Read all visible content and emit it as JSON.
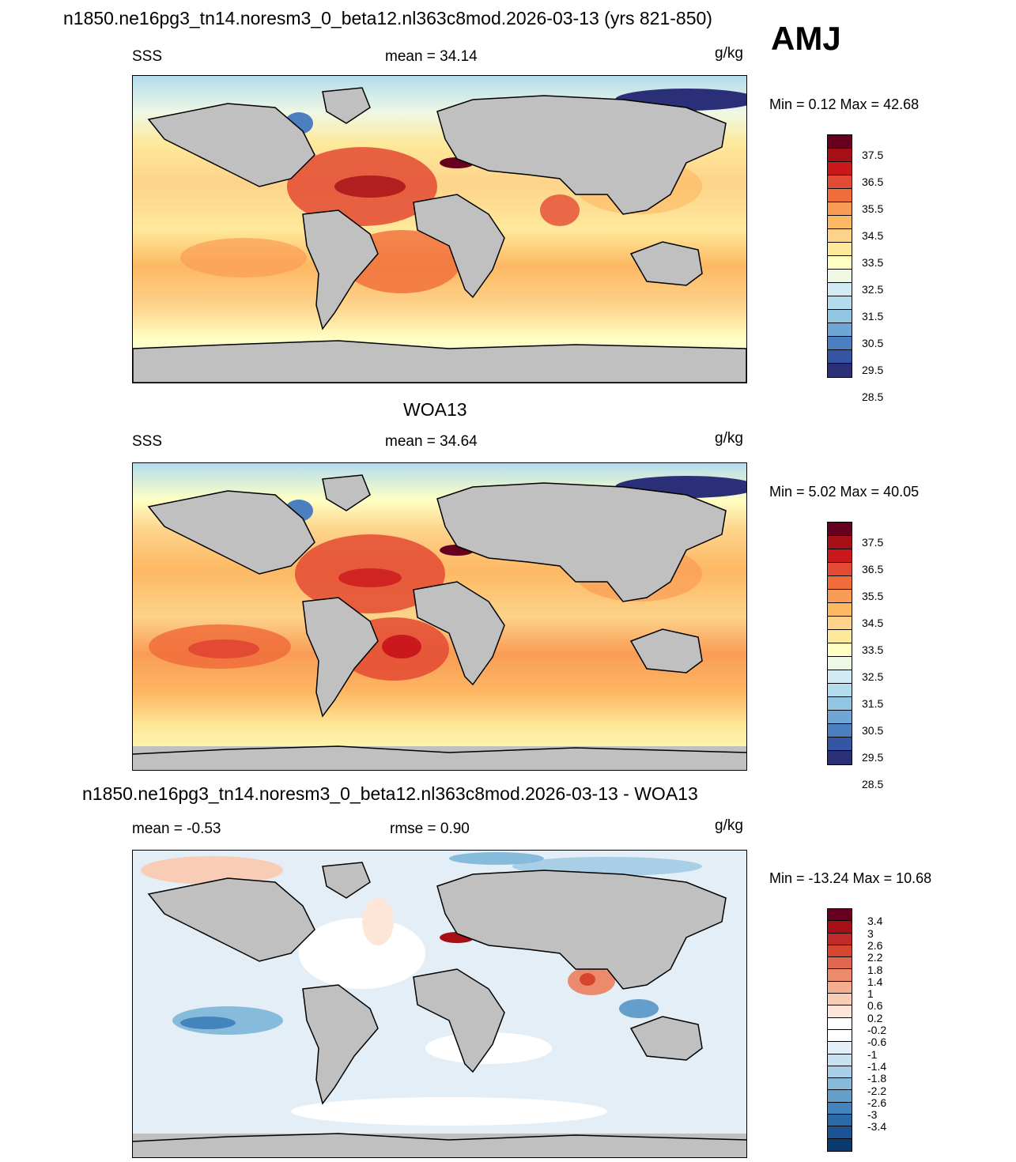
{
  "header": {
    "title": "n1850.ne16pg3_tn14.noresm3_0_beta12.nl363c8mod.2026-03-13 (yrs 821-850)",
    "season": "AMJ"
  },
  "panels": [
    {
      "id": "model",
      "title": "",
      "left_label": "SSS",
      "center_label": "mean =  34.14",
      "units": "g/kg",
      "minmax": "Min =   0.12 Max =  42.68",
      "colorbar": {
        "colors": [
          "#67001f",
          "#a50f15",
          "#cb181d",
          "#e34a33",
          "#f06d3b",
          "#f99c56",
          "#fdb863",
          "#fdd38a",
          "#fee99b",
          "#ffffc4",
          "#eef8e5",
          "#d1eaf4",
          "#b3dced",
          "#92c5e2",
          "#6fa6d5",
          "#4b7fc0",
          "#3456a4",
          "#2a2f78"
        ],
        "labels": [
          "37.5",
          "36.5",
          "35.5",
          "34.5",
          "33.5",
          "32.5",
          "31.5",
          "30.5",
          "29.5",
          "28.5"
        ]
      }
    },
    {
      "id": "obs",
      "title": "WOA13",
      "left_label": "SSS",
      "center_label": "mean =  34.64",
      "units": "g/kg",
      "minmax": "Min =   5.02 Max =  40.05",
      "colorbar": {
        "colors": [
          "#67001f",
          "#a50f15",
          "#cb181d",
          "#e34a33",
          "#f06d3b",
          "#f99c56",
          "#fdb863",
          "#fdd38a",
          "#fee99b",
          "#ffffc4",
          "#eef8e5",
          "#d1eaf4",
          "#b3dced",
          "#92c5e2",
          "#6fa6d5",
          "#4b7fc0",
          "#3456a4",
          "#2a2f78"
        ],
        "labels": [
          "37.5",
          "36.5",
          "35.5",
          "34.5",
          "33.5",
          "32.5",
          "31.5",
          "30.5",
          "29.5",
          "28.5"
        ]
      }
    },
    {
      "id": "diff",
      "title": "n1850.ne16pg3_tn14.noresm3_0_beta12.nl363c8mod.2026-03-13 - WOA13",
      "left_label": "mean =  -0.53",
      "center_label": "rmse =   0.90",
      "units": "g/kg",
      "minmax": "Min = -13.24 Max =  10.68",
      "colorbar": {
        "colors": [
          "#67001f",
          "#a50f15",
          "#c22a2a",
          "#d6452d",
          "#e0674e",
          "#ec8a6e",
          "#f4ad90",
          "#f9cdb5",
          "#fde6d8",
          "#ffffff",
          "#ffffff",
          "#e3eef7",
          "#c9e0f0",
          "#a8cfe6",
          "#87bbdb",
          "#649fcc",
          "#4384bd",
          "#2b6aa8",
          "#1c5394",
          "#0b3a70"
        ],
        "labels": [
          "3.4",
          "3",
          "2.6",
          "2.2",
          "1.8",
          "1.4",
          "1",
          "0.6",
          "0.2",
          "-0.2",
          "-0.6",
          "-1",
          "-1.4",
          "-1.8",
          "-2.2",
          "-2.6",
          "-3",
          "-3.4"
        ]
      }
    }
  ]
}
